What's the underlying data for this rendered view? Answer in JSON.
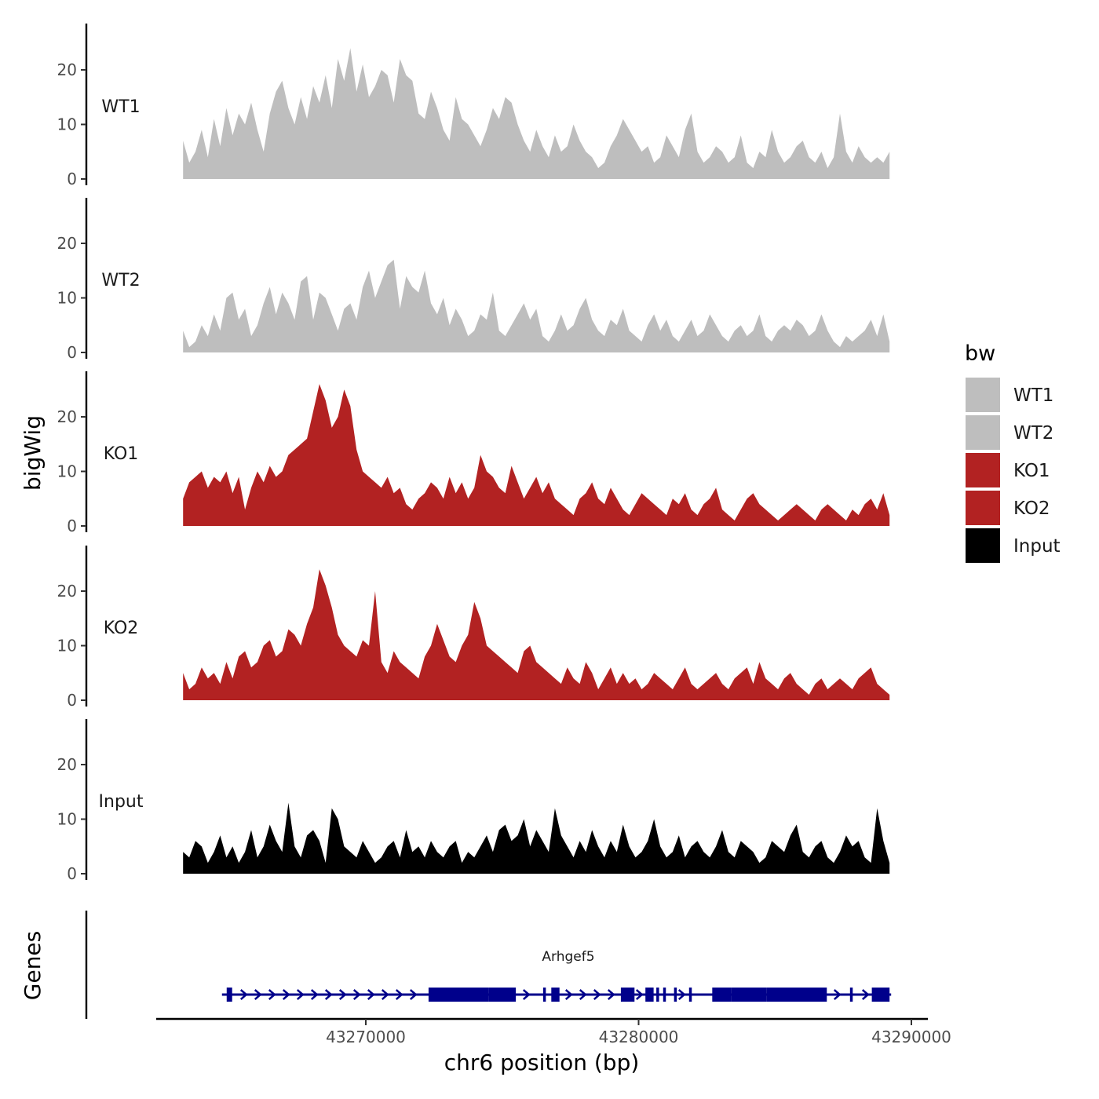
{
  "chart_data": {
    "type": "area",
    "title": "",
    "ylabel": "bigWig",
    "xlabel": "chr6 position (bp)",
    "xlim": [
      43262000,
      43290500
    ],
    "x_ticks": [
      43270000,
      43280000,
      43290000
    ],
    "x_tick_labels": [
      "43270000",
      "43280000",
      "43290000"
    ],
    "ylim": [
      0,
      28
    ],
    "y_ticks": [
      0,
      10,
      20
    ],
    "y_tick_labels": [
      "0",
      "10",
      "20"
    ],
    "data_x_range": [
      43263300,
      43289200
    ],
    "legend": {
      "title": "bw",
      "position": "right",
      "entries": [
        {
          "label": "WT1",
          "color": "#bebebe"
        },
        {
          "label": "WT2",
          "color": "#bebebe"
        },
        {
          "label": "KO1",
          "color": "#b22222"
        },
        {
          "label": "KO2",
          "color": "#b22222"
        },
        {
          "label": "Input",
          "color": "#000000"
        }
      ]
    },
    "series": [
      {
        "name": "WT1",
        "color": "#bebebe",
        "values": [
          7,
          3,
          5,
          9,
          4,
          11,
          6,
          13,
          8,
          12,
          10,
          14,
          9,
          5,
          12,
          16,
          18,
          13,
          10,
          15,
          11,
          17,
          14,
          19,
          13,
          22,
          18,
          24,
          16,
          21,
          15,
          17,
          20,
          19,
          14,
          22,
          19,
          18,
          12,
          11,
          16,
          13,
          9,
          7,
          15,
          11,
          10,
          8,
          6,
          9,
          13,
          11,
          15,
          14,
          10,
          7,
          5,
          9,
          6,
          4,
          8,
          5,
          6,
          10,
          7,
          5,
          4,
          2,
          3,
          6,
          8,
          11,
          9,
          7,
          5,
          6,
          3,
          4,
          8,
          6,
          4,
          9,
          12,
          5,
          3,
          4,
          6,
          5,
          3,
          4,
          8,
          3,
          2,
          5,
          4,
          9,
          5,
          3,
          4,
          6,
          7,
          4,
          3,
          5,
          2,
          4,
          12,
          5,
          3,
          6,
          4,
          3,
          4,
          3,
          5
        ]
      },
      {
        "name": "WT2",
        "color": "#bebebe",
        "values": [
          4,
          1,
          2,
          5,
          3,
          7,
          4,
          10,
          11,
          6,
          8,
          3,
          5,
          9,
          12,
          7,
          11,
          9,
          6,
          13,
          14,
          6,
          11,
          10,
          7,
          4,
          8,
          9,
          6,
          12,
          15,
          10,
          13,
          16,
          17,
          8,
          14,
          12,
          11,
          15,
          9,
          7,
          10,
          5,
          8,
          6,
          3,
          4,
          7,
          6,
          11,
          4,
          3,
          5,
          7,
          9,
          6,
          8,
          3,
          2,
          4,
          7,
          4,
          5,
          8,
          10,
          6,
          4,
          3,
          6,
          5,
          8,
          4,
          3,
          2,
          5,
          7,
          4,
          6,
          3,
          2,
          4,
          6,
          3,
          4,
          7,
          5,
          3,
          2,
          4,
          5,
          3,
          4,
          7,
          3,
          2,
          4,
          5,
          4,
          6,
          5,
          3,
          4,
          7,
          4,
          2,
          1,
          3,
          2,
          3,
          4,
          6,
          3,
          7,
          2
        ]
      },
      {
        "name": "KO1",
        "color": "#b22222",
        "values": [
          5,
          8,
          9,
          10,
          7,
          9,
          8,
          10,
          6,
          9,
          3,
          7,
          10,
          8,
          11,
          9,
          10,
          13,
          14,
          15,
          16,
          21,
          26,
          23,
          18,
          20,
          25,
          22,
          14,
          10,
          9,
          8,
          7,
          9,
          6,
          7,
          4,
          3,
          5,
          6,
          8,
          7,
          5,
          9,
          6,
          8,
          5,
          7,
          13,
          10,
          9,
          7,
          6,
          11,
          8,
          5,
          7,
          9,
          6,
          8,
          5,
          4,
          3,
          2,
          5,
          6,
          8,
          5,
          4,
          7,
          5,
          3,
          2,
          4,
          6,
          5,
          4,
          3,
          2,
          5,
          4,
          6,
          3,
          2,
          4,
          5,
          7,
          3,
          2,
          1,
          3,
          5,
          6,
          4,
          3,
          2,
          1,
          2,
          3,
          4,
          3,
          2,
          1,
          3,
          4,
          3,
          2,
          1,
          3,
          2,
          4,
          5,
          3,
          6,
          2
        ]
      },
      {
        "name": "KO2",
        "color": "#b22222",
        "values": [
          5,
          2,
          3,
          6,
          4,
          5,
          3,
          7,
          4,
          8,
          9,
          6,
          7,
          10,
          11,
          8,
          9,
          13,
          12,
          10,
          14,
          17,
          24,
          21,
          17,
          12,
          10,
          9,
          8,
          11,
          10,
          20,
          7,
          5,
          9,
          7,
          6,
          5,
          4,
          8,
          10,
          14,
          11,
          8,
          7,
          10,
          12,
          18,
          15,
          10,
          9,
          8,
          7,
          6,
          5,
          9,
          10,
          7,
          6,
          5,
          4,
          3,
          6,
          4,
          3,
          7,
          5,
          2,
          4,
          6,
          3,
          5,
          3,
          4,
          2,
          3,
          5,
          4,
          3,
          2,
          4,
          6,
          3,
          2,
          3,
          4,
          5,
          3,
          2,
          4,
          5,
          6,
          3,
          7,
          4,
          3,
          2,
          4,
          5,
          3,
          2,
          1,
          3,
          4,
          2,
          3,
          4,
          3,
          2,
          4,
          5,
          6,
          3,
          2,
          1
        ]
      },
      {
        "name": "Input",
        "color": "#000000",
        "values": [
          4,
          3,
          6,
          5,
          2,
          4,
          7,
          3,
          5,
          2,
          4,
          8,
          3,
          5,
          9,
          6,
          4,
          13,
          5,
          3,
          7,
          8,
          6,
          2,
          12,
          10,
          5,
          4,
          3,
          6,
          4,
          2,
          3,
          5,
          6,
          3,
          8,
          4,
          5,
          3,
          6,
          4,
          3,
          5,
          6,
          2,
          4,
          3,
          5,
          7,
          4,
          8,
          9,
          6,
          7,
          10,
          5,
          8,
          6,
          4,
          12,
          7,
          5,
          3,
          6,
          4,
          8,
          5,
          3,
          6,
          4,
          9,
          5,
          3,
          4,
          6,
          10,
          5,
          3,
          4,
          7,
          3,
          5,
          6,
          4,
          3,
          5,
          8,
          4,
          3,
          6,
          5,
          4,
          2,
          3,
          6,
          5,
          4,
          7,
          9,
          4,
          3,
          5,
          6,
          3,
          2,
          4,
          7,
          5,
          6,
          3,
          2,
          12,
          6,
          2
        ]
      }
    ],
    "gene_track": {
      "ylabel": "Genes",
      "gene_name": "Arhgef5",
      "strand": "+",
      "start": 43264900,
      "end": 43289200,
      "exons": [
        [
          43264900,
          43265100
        ],
        [
          43272300,
          43274500
        ],
        [
          43274500,
          43275500
        ],
        [
          43276500,
          43276600
        ],
        [
          43276800,
          43277100
        ],
        [
          43279350,
          43279850
        ],
        [
          43280250,
          43280550
        ],
        [
          43280650,
          43280750
        ],
        [
          43280900,
          43281000
        ],
        [
          43281300,
          43281400
        ],
        [
          43281850,
          43281950
        ],
        [
          43282700,
          43283400
        ],
        [
          43283400,
          43284700
        ],
        [
          43284700,
          43286900
        ],
        [
          43287750,
          43287850
        ],
        [
          43288550,
          43289200
        ]
      ]
    }
  }
}
